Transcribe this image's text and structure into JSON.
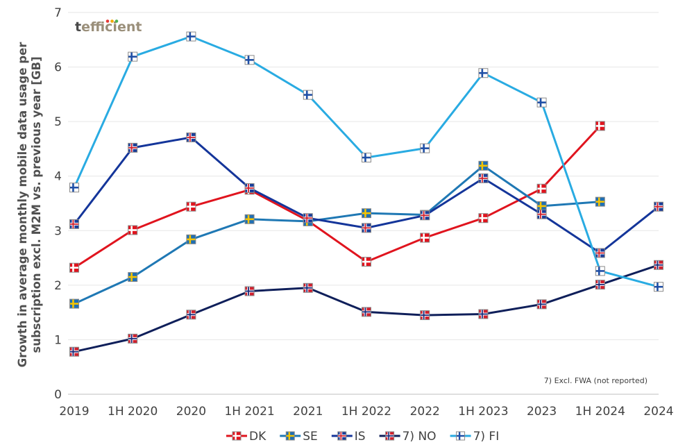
{
  "brand": {
    "prefix": "t",
    "rest": "efficient",
    "dots": [
      "#e53935",
      "#f2a900",
      "#4caf50"
    ]
  },
  "note": "7) Excl. FWA (not reported)",
  "chart_data": {
    "type": "line",
    "title": "",
    "ylabel_lines": [
      "Growth in average monthly mobile data usage per",
      "subscription excl. M2M vs. previous year [GB]"
    ],
    "xlabel": "",
    "categories": [
      "2019",
      "1H 2020",
      "2020",
      "1H 2021",
      "2021",
      "1H 2022",
      "2022",
      "1H 2023",
      "2023",
      "1H 2024",
      "2024"
    ],
    "ylim": [
      0,
      7
    ],
    "yticks": [
      0,
      1,
      2,
      3,
      4,
      5,
      6,
      7
    ],
    "grid": true,
    "legend_position": "bottom",
    "series": [
      {
        "name": "DK",
        "flag": "dk",
        "color": "#e0141e",
        "values": [
          2.32,
          3.01,
          3.44,
          3.75,
          3.18,
          2.43,
          2.87,
          3.23,
          3.77,
          4.92,
          null
        ]
      },
      {
        "name": "SE",
        "flag": "se",
        "color": "#1f78b4",
        "values": [
          1.66,
          2.15,
          2.84,
          3.21,
          3.17,
          3.32,
          3.29,
          4.19,
          3.45,
          3.53,
          null
        ]
      },
      {
        "name": "IS",
        "flag": "is",
        "color": "#14359a",
        "values": [
          3.12,
          4.52,
          4.71,
          3.78,
          3.23,
          3.05,
          3.28,
          3.96,
          3.3,
          2.59,
          3.44
        ]
      },
      {
        "name": "7) NO",
        "flag": "no",
        "color": "#0f1f5a",
        "values": [
          0.78,
          1.02,
          1.46,
          1.89,
          1.95,
          1.51,
          1.45,
          1.47,
          1.65,
          2.01,
          2.37
        ]
      },
      {
        "name": "7) FI",
        "flag": "fi",
        "color": "#29abe2",
        "values": [
          3.79,
          6.19,
          6.56,
          6.13,
          5.49,
          4.34,
          4.51,
          5.89,
          5.35,
          2.26,
          1.97
        ]
      }
    ]
  }
}
